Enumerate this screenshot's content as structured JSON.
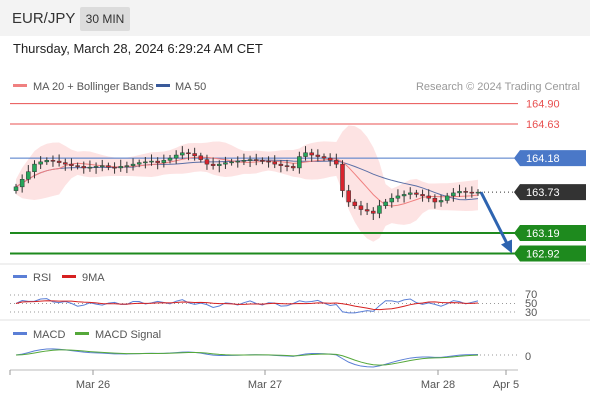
{
  "header": {
    "symbol": "EUR/JPY",
    "interval": "30 MIN",
    "datetime": "Thursday, March 28, 2024 6:29:24 AM CET"
  },
  "legend": {
    "ma20": "MA 20 + Bollinger Bands",
    "ma50": "MA 50",
    "rsi": "RSI",
    "ma9": "9MA",
    "macd": "MACD",
    "macd_signal": "MACD Signal"
  },
  "watermark": "Research © 2024 Trading Central",
  "colors": {
    "candle_up": "#26a65b",
    "candle_down": "#d9232d",
    "ma20": "#f08080",
    "bollinger_fill": "#fde0e0",
    "ma50": "#5b6fa6",
    "resistance": "#e85050",
    "support": "#1e8a1e",
    "pivot": "#4a78c8",
    "current": "#333333",
    "forecast_arrow": "#2e64b0",
    "rsi": "#5b7fd6",
    "rsi_ma": "#d62020",
    "macd": "#5b7fd6",
    "macd_signal": "#55a83a"
  },
  "chart_data": {
    "type": "candlestick",
    "x_ticks": [
      "Mar 26",
      "Mar 27",
      "Mar 28",
      "Apr 5"
    ],
    "price_range": [
      162.86,
      165.0
    ],
    "price_levels": [
      {
        "label": "164.90",
        "value": 164.9,
        "kind": "resistance"
      },
      {
        "label": "164.63",
        "value": 164.63,
        "kind": "resistance"
      },
      {
        "label": "164.18",
        "value": 164.18,
        "kind": "pivot"
      },
      {
        "label": "163.73",
        "value": 163.73,
        "kind": "current"
      },
      {
        "label": "163.19",
        "value": 163.19,
        "kind": "support"
      },
      {
        "label": "162.92",
        "value": 162.92,
        "kind": "support"
      }
    ],
    "forecast": {
      "from": 163.73,
      "to": 162.92
    },
    "close_approx": [
      163.8,
      163.9,
      164.0,
      164.1,
      164.13,
      164.15,
      164.14,
      164.12,
      164.1,
      164.08,
      164.07,
      164.05,
      164.06,
      164.07,
      164.08,
      164.06,
      164.05,
      164.07,
      164.08,
      164.1,
      164.12,
      164.13,
      164.14,
      164.12,
      164.15,
      164.18,
      164.22,
      164.25,
      164.24,
      164.21,
      164.16,
      164.1,
      164.08,
      164.1,
      164.12,
      164.13,
      164.14,
      164.15,
      164.16,
      164.15,
      164.14,
      164.13,
      164.1,
      164.08,
      164.07,
      164.05,
      164.2,
      164.25,
      164.22,
      164.2,
      164.18,
      164.15,
      164.1,
      163.75,
      163.6,
      163.55,
      163.5,
      163.48,
      163.45,
      163.55,
      163.6,
      163.65,
      163.68,
      163.7,
      163.72,
      163.7,
      163.68,
      163.65,
      163.6,
      163.62,
      163.68,
      163.72,
      163.74,
      163.73,
      163.72,
      163.73
    ],
    "rsi": {
      "levels": [
        70,
        50,
        30
      ]
    },
    "macd": {
      "levels": [
        0
      ]
    }
  }
}
